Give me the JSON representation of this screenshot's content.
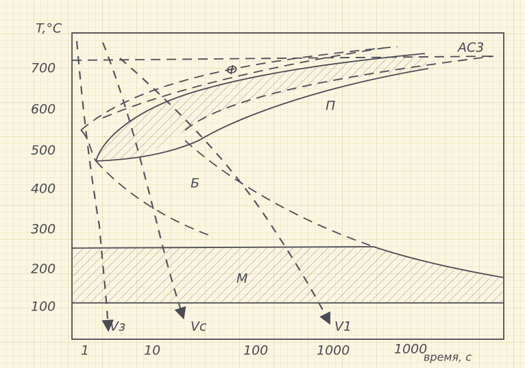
{
  "axes": {
    "y_label": "T,°C",
    "y_ticks": [
      "700",
      "600",
      "500",
      "400",
      "300",
      "200",
      "100"
    ],
    "x_ticks": [
      "1",
      "10",
      "100",
      "1000",
      "1000"
    ],
    "x_label": "время, с"
  },
  "lines": {
    "ac3": "AC3"
  },
  "regions": {
    "ferrite": "Ф",
    "pearlite": "П",
    "bainite": "Б",
    "martensite": "М"
  },
  "cooling": [
    "Vз",
    "Vс",
    "V1"
  ]
}
